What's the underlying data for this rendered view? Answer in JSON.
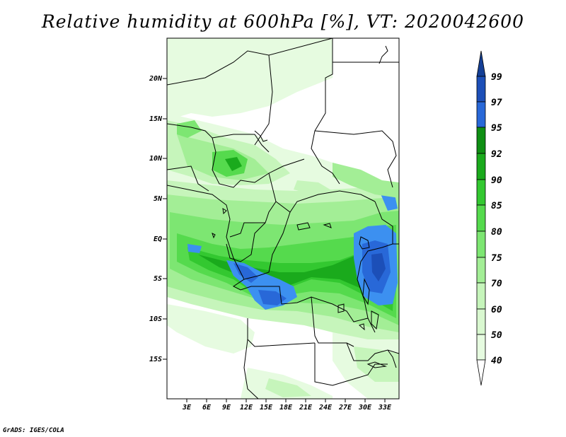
{
  "title": "Relative humidity at 600hPa [%], VT: 2020042600",
  "credit": "GrADS: IGES/COLA",
  "map": {
    "lon_labels": [
      "3E",
      "6E",
      "9E",
      "12E",
      "15E",
      "18E",
      "21E",
      "24E",
      "27E",
      "30E",
      "33E"
    ],
    "lat_labels": [
      "20N",
      "15N",
      "10N",
      "5N",
      "EQ",
      "5S",
      "10S",
      "15S"
    ],
    "lon_range": [
      0,
      35
    ],
    "lat_range": [
      -20,
      25
    ]
  },
  "colorbar": {
    "labels": [
      "40",
      "50",
      "60",
      "70",
      "75",
      "80",
      "85",
      "90",
      "92",
      "95",
      "97",
      "99"
    ],
    "colors": [
      "#ffffff",
      "#e6fbe0",
      "#c6f5bb",
      "#a3ee96",
      "#7de672",
      "#55da4d",
      "#33c830",
      "#1aaa1c",
      "#0f8f14",
      "#3c90f0",
      "#2868d8",
      "#1c4fb8",
      "#143f96"
    ]
  }
}
